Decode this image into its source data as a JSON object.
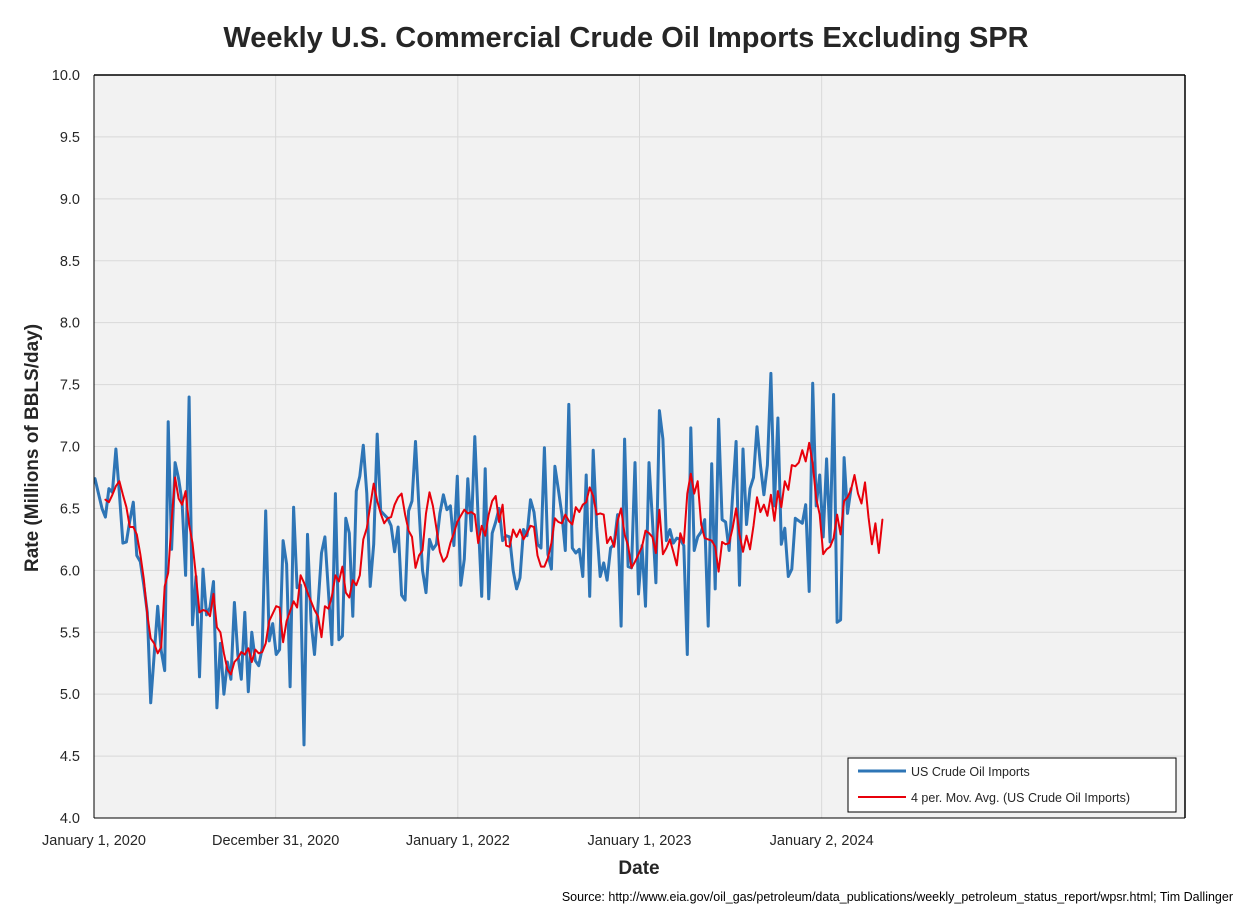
{
  "colors": {
    "series_imports": "#2e75b6",
    "series_moving_avg": "#e8000b",
    "plot_background": "#f2f2f2",
    "gridline": "#d9d9d9",
    "axis": "#000000"
  },
  "footer": {
    "source": "Source: http://www.eia.gov/oil_gas/petroleum/data_publications/weekly_petroleum_status_report/wpsr.html; Tim Dallinger"
  },
  "chart_data": {
    "type": "line",
    "title": "Weekly U.S. Commercial Crude Oil Imports Excluding SPR",
    "xlabel": "Date",
    "ylabel": "Rate (Millions of BBLS/day)",
    "xlim": [
      "2020-01-01",
      "2026-01-01"
    ],
    "ylim": [
      4.0,
      10.0
    ],
    "y_ticks": [
      "4.0",
      "4.5",
      "5.0",
      "5.5",
      "6.0",
      "6.5",
      "7.0",
      "7.5",
      "8.0",
      "8.5",
      "9.0",
      "9.5",
      "10.0"
    ],
    "x_ticks": [
      {
        "date": "2020-01-01",
        "label": "January 1, 2020"
      },
      {
        "date": "2020-12-31",
        "label": "December 31, 2020"
      },
      {
        "date": "2022-01-01",
        "label": "January 1, 2022"
      },
      {
        "date": "2023-01-01",
        "label": "January 1, 2023"
      },
      {
        "date": "2024-01-02",
        "label": "January 2, 2024"
      }
    ],
    "grid": true,
    "legend_position": "bottom-right",
    "x_start": "2020-01-03",
    "x_step_days": 7,
    "series": [
      {
        "name": "US Crude Oil Imports",
        "color": "#2e75b6",
        "values": [
          6.74,
          6.62,
          6.5,
          6.43,
          6.66,
          6.63,
          6.98,
          6.62,
          6.22,
          6.23,
          6.4,
          6.55,
          6.12,
          6.07,
          5.88,
          5.66,
          4.93,
          5.32,
          5.71,
          5.35,
          5.19,
          7.2,
          6.17,
          6.87,
          6.74,
          6.55,
          5.96,
          7.4,
          5.56,
          5.95,
          5.14,
          6.01,
          5.64,
          5.7,
          5.91,
          4.89,
          5.41,
          5.0,
          5.26,
          5.12,
          5.74,
          5.32,
          5.12,
          5.66,
          5.02,
          5.5,
          5.27,
          5.23,
          5.37,
          6.48,
          5.43,
          5.57,
          5.32,
          5.36,
          6.24,
          6.05,
          5.06,
          6.51,
          5.86,
          5.88,
          4.59,
          6.29,
          5.59,
          5.32,
          5.71,
          6.14,
          6.27,
          5.83,
          5.4,
          6.62,
          5.44,
          5.47,
          6.42,
          6.3,
          5.63,
          6.64,
          6.76,
          7.01,
          6.62,
          5.87,
          6.21,
          7.1,
          6.48,
          6.45,
          6.42,
          6.36,
          6.15,
          6.35,
          5.8,
          5.76,
          6.48,
          6.56,
          7.04,
          6.5,
          6.0,
          5.82,
          6.25,
          6.17,
          6.21,
          6.46,
          6.61,
          6.49,
          6.52,
          6.2,
          6.76,
          5.88,
          6.09,
          6.74,
          6.32,
          7.08,
          6.41,
          5.79,
          6.82,
          5.77,
          6.3,
          6.39,
          6.5,
          6.24,
          6.28,
          6.27,
          6.0,
          5.85,
          5.94,
          6.33,
          6.28,
          6.57,
          6.47,
          6.21,
          6.18,
          6.99,
          6.13,
          6.01,
          6.84,
          6.65,
          6.45,
          6.16,
          7.34,
          6.18,
          6.14,
          6.17,
          5.95,
          6.77,
          5.79,
          6.97,
          6.35,
          5.95,
          6.06,
          5.92,
          6.18,
          6.21,
          6.45,
          5.55,
          7.06,
          6.03,
          6.02,
          6.87,
          5.81,
          6.2,
          5.71,
          6.87,
          6.41,
          5.9,
          7.29,
          7.06,
          6.24,
          6.33,
          6.22,
          6.26,
          6.25,
          6.2,
          5.32,
          7.15,
          6.16,
          6.27,
          6.31,
          6.41,
          5.55,
          6.86,
          5.85,
          7.22,
          6.41,
          6.39,
          6.16,
          6.6,
          7.04,
          5.88,
          6.98,
          6.37,
          6.66,
          6.75,
          7.16,
          6.85,
          6.61,
          6.85,
          7.59,
          6.52,
          7.23,
          6.21,
          6.34,
          5.95,
          6.01,
          6.42,
          6.4,
          6.38,
          6.53,
          5.83,
          7.51,
          6.52,
          6.77,
          6.27,
          6.9,
          6.23,
          7.42,
          5.58,
          5.6,
          6.91,
          6.46,
          6.66
        ]
      },
      {
        "name": "4 per. Mov. Avg. (US Crude Oil Imports)",
        "color": "#e8000b",
        "start_index": 3,
        "values": [
          6.57,
          6.55,
          6.61,
          6.68,
          6.72,
          6.61,
          6.51,
          6.35,
          6.35,
          6.29,
          6.13,
          5.93,
          5.64,
          5.45,
          5.41,
          5.33,
          5.38,
          5.87,
          5.98,
          6.4,
          6.75,
          6.58,
          6.53,
          6.64,
          6.37,
          6.22,
          5.95,
          5.66,
          5.68,
          5.67,
          5.63,
          5.81,
          5.54,
          5.5,
          5.33,
          5.2,
          5.16,
          5.26,
          5.29,
          5.34,
          5.32,
          5.37,
          5.26,
          5.36,
          5.33,
          5.34,
          5.41,
          5.59,
          5.65,
          5.71,
          5.7,
          5.42,
          5.59,
          5.67,
          5.75,
          5.7,
          5.96,
          5.9,
          5.82,
          5.75,
          5.68,
          5.63,
          5.46,
          5.71,
          5.69,
          5.79,
          5.96,
          5.91,
          6.03,
          5.82,
          5.78,
          5.92,
          5.88,
          5.96,
          6.25,
          6.34,
          6.52,
          6.7,
          6.56,
          6.46,
          6.38,
          6.42,
          6.43,
          6.53,
          6.59,
          6.62,
          6.45,
          6.32,
          6.27,
          6.02,
          6.12,
          6.16,
          6.46,
          6.63,
          6.52,
          6.34,
          6.15,
          6.07,
          6.11,
          6.22,
          6.3,
          6.39,
          6.44,
          6.49,
          6.46,
          6.47,
          6.45,
          6.22,
          6.36,
          6.28,
          6.45,
          6.56,
          6.6,
          6.39,
          6.53,
          6.2,
          6.19,
          6.33,
          6.27,
          6.33,
          6.25,
          6.3,
          6.36,
          6.35,
          6.12,
          6.03,
          6.03,
          6.1,
          6.22,
          6.42,
          6.39,
          6.38,
          6.45,
          6.4,
          6.37,
          6.51,
          6.47,
          6.53,
          6.55,
          6.67,
          6.6,
          6.45,
          6.46,
          6.45,
          6.22,
          6.27,
          6.19,
          6.4,
          6.5,
          6.29,
          6.2,
          6.02,
          6.07,
          6.13,
          6.19,
          6.32,
          6.3,
          6.27,
          6.14,
          6.49,
          6.13,
          6.18,
          6.25,
          6.15,
          6.04,
          6.3,
          6.22,
          6.62,
          6.78,
          6.62,
          6.72,
          6.37,
          6.26,
          6.25,
          6.24,
          6.19,
          5.99,
          6.23,
          6.21,
          6.22,
          6.34,
          6.5,
          6.29,
          6.15,
          6.28,
          6.17,
          6.36,
          6.59,
          6.47,
          6.53,
          6.44,
          6.61,
          6.4,
          6.64,
          6.51,
          6.72,
          6.65,
          6.85,
          6.84,
          6.87,
          6.97,
          6.88,
          7.03,
          6.86,
          6.58,
          6.45,
          6.13,
          6.17,
          6.19,
          6.26,
          6.45,
          6.29,
          6.56,
          6.59,
          6.65,
          6.77,
          6.62,
          6.54,
          6.71,
          6.43,
          6.21,
          6.38,
          6.14,
          6.41
        ]
      }
    ]
  }
}
